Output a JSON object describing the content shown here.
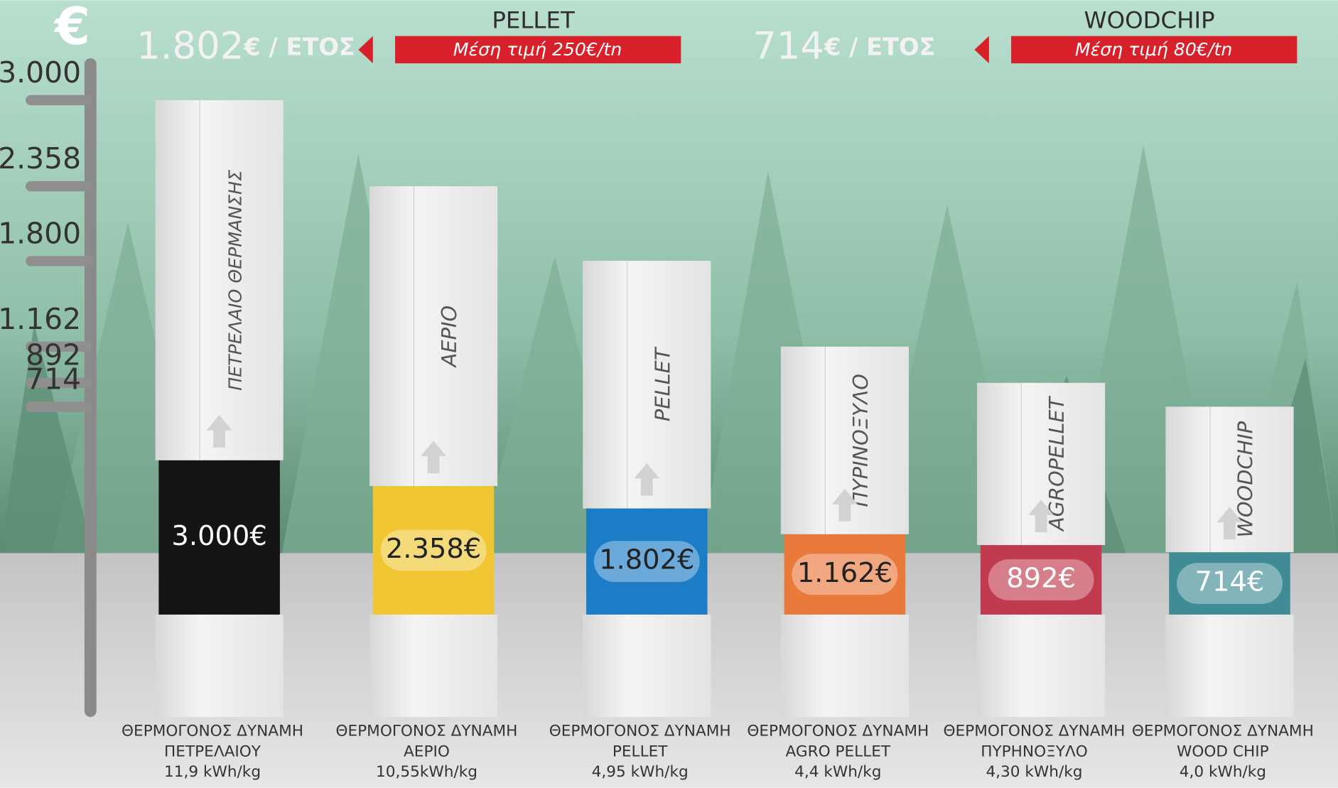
{
  "chart_data": {
    "type": "bar",
    "currency": "€",
    "callouts": [
      {
        "title": "PELLET",
        "note": "Μέση τιμή 250€/tn",
        "amount": "1.802",
        "unit": "€ / ΕΤΟΣ"
      },
      {
        "title": "WOODCHIP",
        "note": "Μέση τιμή 80€/tn",
        "amount": "714",
        "unit": "€ / ΕΤΟΣ"
      }
    ],
    "categories": [
      "ΠΕΤΡΕΛΑΙΟ ΘΕΡΜΑΝΣΗΣ",
      "ΑΕΡΙΟ",
      "PELLET",
      "ΠΥΡΙΝΟΞΥΛΟ",
      "AGROPELLET",
      "WOODCHIP"
    ],
    "values": [
      3000,
      2358,
      1802,
      1162,
      892,
      714
    ],
    "value_labels": [
      "3.000€",
      "2.358€",
      "1.802€",
      "1.162€",
      "892€",
      "714€"
    ],
    "colors": [
      "#141414",
      "#f0c733",
      "#1c7cc6",
      "#ea7a3c",
      "#c23a4e",
      "#3f8c96"
    ],
    "captions": [
      [
        "ΘΕΡΜΟΓΟΝΟΣ ΔΥΝΑΜΗ",
        "ΠΕΤΡΕΛΑΙΟΥ",
        "11,9 kWh/kg"
      ],
      [
        "ΘΕΡΜΟΓΟΝΟΣ ΔΥΝΑΜΗ",
        "ΑΕΡΙΟ",
        "10,55kWh/kg"
      ],
      [
        "ΘΕΡΜΟΓΟΝΟΣ ΔΥΝΑΜΗ",
        "PELLET",
        "4,95 kWh/kg"
      ],
      [
        "ΘΕΡΜΟΓΟΝΟΣ ΔΥΝΑΜΗ",
        "AGRO PELLET",
        "4,4 kWh/kg"
      ],
      [
        "ΘΕΡΜΟΓΟΝΟΣ ΔΥΝΑΜΗ",
        "ΠΥΡΗΝΟΞΥΛΟ",
        "4,30 kWh/kg"
      ],
      [
        "ΘΕΡΜΟΓΟΝΟΣ ΔΥΝΑΜΗ",
        "WOOD CHIP",
        "4,0 kWh/kg"
      ]
    ],
    "ylim": [
      -1600,
      3300
    ],
    "yticks": [
      {
        "value": 3000,
        "label": "3.000"
      },
      {
        "value": 2358,
        "label": "2.358"
      },
      {
        "value": 1800,
        "label": "1.800"
      },
      {
        "value": 1162,
        "label": "1.162"
      },
      892,
      714
    ]
  }
}
